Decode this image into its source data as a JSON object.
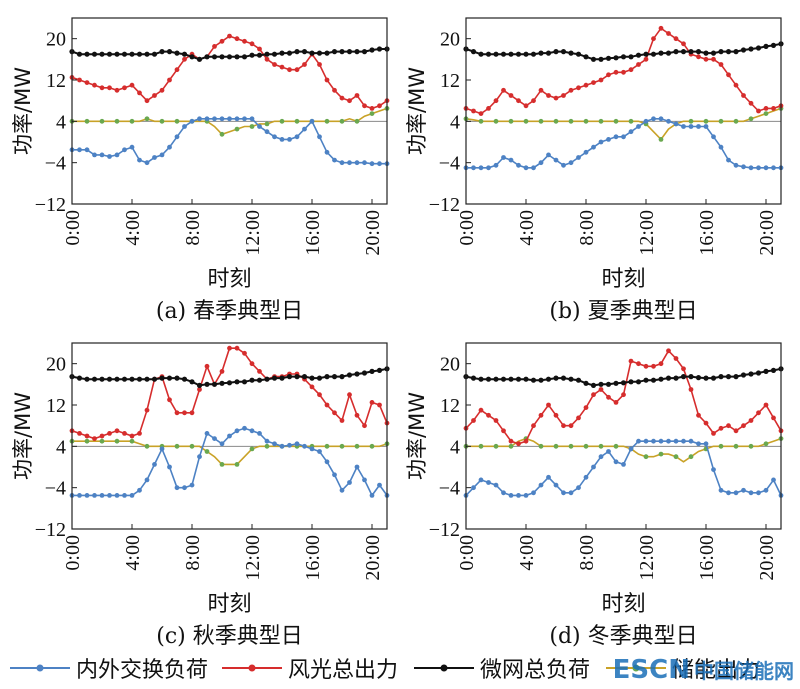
{
  "colors": {
    "exchange": "#4d82c4",
    "renewable": "#d62d2d",
    "load": "#111111",
    "storage": "#c9a227",
    "storage_marker": "#6aa84f"
  },
  "chart_data": [
    {
      "type": "line",
      "caption": "(a) 春季典型日",
      "xlabel": "时刻",
      "ylabel": "功率/MW",
      "x_ticks": [
        "0:00",
        "4:00",
        "8:00",
        "12:00",
        "16:00",
        "20:00"
      ],
      "y_ticks": [
        -12,
        -4,
        4,
        12,
        20
      ],
      "ylim": [
        -12,
        24
      ],
      "x_range_hours": [
        0,
        21
      ],
      "x_hours": [
        0,
        0.5,
        1,
        1.5,
        2,
        2.5,
        3,
        3.5,
        4,
        4.5,
        5,
        5.5,
        6,
        6.5,
        7,
        7.5,
        8,
        8.5,
        9,
        9.5,
        10,
        10.5,
        11,
        11.5,
        12,
        12.5,
        13,
        13.5,
        14,
        14.5,
        15,
        15.5,
        16,
        16.5,
        17,
        17.5,
        18,
        18.5,
        19,
        19.5,
        20,
        20.5,
        21
      ],
      "series": [
        {
          "name": "内外交换负荷",
          "key": "exchange",
          "values": [
            -1.5,
            -1.5,
            -1.5,
            -2.5,
            -2.5,
            -2.8,
            -2.5,
            -1.5,
            -1,
            -3.5,
            -4,
            -3,
            -2.5,
            -1,
            1,
            3,
            4,
            4.5,
            4.5,
            4.5,
            4.5,
            4.5,
            4.5,
            4.5,
            4.5,
            3,
            2,
            1,
            0.5,
            0.5,
            1,
            2.5,
            4,
            1,
            -2,
            -3.5,
            -4,
            -4,
            -4,
            -4,
            -4.2,
            -4.2,
            -4.2
          ]
        },
        {
          "name": "风光总出力",
          "key": "renewable",
          "values": [
            12.5,
            12,
            11.5,
            11,
            10.5,
            10.5,
            10,
            10.5,
            11,
            9.5,
            8,
            9,
            10,
            12,
            14,
            16,
            17,
            16,
            16.5,
            18.5,
            19.5,
            20.5,
            20,
            19.5,
            19,
            18,
            16,
            15,
            14.5,
            14,
            14,
            15,
            17,
            15,
            12,
            10,
            8.5,
            8,
            9,
            7,
            6.5,
            7,
            8
          ]
        },
        {
          "name": "微网总负荷",
          "key": "load",
          "values": [
            17.5,
            17,
            17,
            17,
            17,
            17,
            17,
            17,
            17,
            17,
            17,
            17,
            17.5,
            17.5,
            17.2,
            17,
            16.5,
            16,
            16.5,
            16.5,
            16.5,
            16.5,
            16.5,
            16.5,
            16.8,
            16.8,
            17,
            17,
            17.2,
            17.2,
            17.5,
            17.5,
            17.2,
            17.2,
            17.2,
            17.5,
            17.5,
            17.5,
            17.5,
            17.5,
            17.8,
            18,
            18
          ]
        },
        {
          "name": "储能出力",
          "key": "storage",
          "values": [
            4,
            4,
            4,
            4,
            4,
            4,
            4,
            4,
            4,
            4,
            4.5,
            4,
            4,
            4,
            4,
            4,
            4,
            4,
            4,
            3,
            1.5,
            2,
            2.5,
            3,
            3,
            3.5,
            3.5,
            4,
            4,
            4,
            4,
            4,
            4,
            4,
            4,
            4,
            4,
            4.5,
            4,
            5,
            5.5,
            6,
            6.5
          ]
        }
      ]
    },
    {
      "type": "line",
      "caption": "(b) 夏季典型日",
      "xlabel": "时刻",
      "ylabel": "功率/MW",
      "x_ticks": [
        "0:00",
        "4:00",
        "8:00",
        "12:00",
        "16:00",
        "20:00"
      ],
      "y_ticks": [
        -12,
        -4,
        4,
        12,
        20
      ],
      "ylim": [
        -12,
        24
      ],
      "x_range_hours": [
        0,
        21
      ],
      "x_hours": [
        0,
        0.5,
        1,
        1.5,
        2,
        2.5,
        3,
        3.5,
        4,
        4.5,
        5,
        5.5,
        6,
        6.5,
        7,
        7.5,
        8,
        8.5,
        9,
        9.5,
        10,
        10.5,
        11,
        11.5,
        12,
        12.5,
        13,
        13.5,
        14,
        14.5,
        15,
        15.5,
        16,
        16.5,
        17,
        17.5,
        18,
        18.5,
        19,
        19.5,
        20,
        20.5,
        21
      ],
      "series": [
        {
          "name": "内外交换负荷",
          "key": "exchange",
          "values": [
            -5,
            -5,
            -5,
            -5,
            -4.5,
            -3,
            -3.5,
            -4.5,
            -5,
            -5,
            -4,
            -2.5,
            -3.5,
            -4.5,
            -4,
            -3,
            -2,
            -1,
            0,
            0.5,
            1,
            1,
            2,
            3,
            4,
            4.5,
            4.5,
            4,
            3.5,
            3,
            3,
            3,
            3,
            1,
            -1,
            -3.5,
            -4.5,
            -4.8,
            -5,
            -5,
            -5,
            -5,
            -5
          ]
        },
        {
          "name": "风光总出力",
          "key": "renewable",
          "values": [
            6.5,
            6,
            5.5,
            6.5,
            8,
            10,
            9,
            8,
            7,
            8,
            10,
            9,
            8.5,
            9,
            10,
            10.5,
            11,
            11.5,
            12,
            13,
            13.5,
            13.5,
            14,
            15,
            16,
            20,
            22,
            21,
            20,
            19,
            17,
            16.5,
            16,
            16,
            15,
            13,
            11,
            9,
            7.5,
            6,
            6.5,
            6.5,
            7
          ]
        },
        {
          "name": "微网总负荷",
          "key": "load",
          "values": [
            18,
            17.5,
            17,
            17,
            17,
            17,
            17,
            17,
            17,
            17,
            17.2,
            17.2,
            17.5,
            17.5,
            17.2,
            17,
            16.5,
            16,
            16,
            16.2,
            16.3,
            16.5,
            16.5,
            16.8,
            17,
            17,
            17.2,
            17.2,
            17.5,
            17.5,
            17.5,
            17.5,
            17.2,
            17.2,
            17.5,
            17.5,
            17.5,
            17.8,
            18,
            18.2,
            18.5,
            18.7,
            19
          ]
        },
        {
          "name": "储能出力",
          "key": "storage",
          "values": [
            4.5,
            4.3,
            4,
            4,
            4,
            4,
            4,
            4,
            4,
            4,
            4,
            4,
            4,
            4,
            4,
            4,
            4,
            4,
            4,
            4,
            4,
            4,
            4,
            4,
            3.5,
            2,
            0.5,
            2.5,
            3.5,
            4,
            4,
            4,
            4,
            4,
            4,
            4,
            4,
            4,
            4.5,
            5,
            5.5,
            6,
            6.5
          ]
        }
      ]
    },
    {
      "type": "line",
      "caption": "(c) 秋季典型日",
      "xlabel": "时刻",
      "ylabel": "功率/MW",
      "x_ticks": [
        "0:00",
        "4:00",
        "8:00",
        "12:00",
        "16:00",
        "20:00"
      ],
      "y_ticks": [
        -12,
        -4,
        4,
        12,
        20
      ],
      "ylim": [
        -12,
        24
      ],
      "x_range_hours": [
        0,
        21
      ],
      "x_hours": [
        0,
        0.5,
        1,
        1.5,
        2,
        2.5,
        3,
        3.5,
        4,
        4.5,
        5,
        5.5,
        6,
        6.5,
        7,
        7.5,
        8,
        8.5,
        9,
        9.5,
        10,
        10.5,
        11,
        11.5,
        12,
        12.5,
        13,
        13.5,
        14,
        14.5,
        15,
        15.5,
        16,
        16.5,
        17,
        17.5,
        18,
        18.5,
        19,
        19.5,
        20,
        20.5,
        21
      ],
      "series": [
        {
          "name": "内外交换负荷",
          "key": "exchange",
          "values": [
            -5.5,
            -5.5,
            -5.5,
            -5.5,
            -5.5,
            -5.5,
            -5.5,
            -5.5,
            -5.5,
            -4.5,
            -2.5,
            0.5,
            3.5,
            0,
            -4,
            -4,
            -3.5,
            2,
            6.5,
            5.5,
            4.5,
            6,
            7,
            7.5,
            7,
            6.5,
            5,
            4.5,
            4,
            4.2,
            4.5,
            4,
            3.5,
            3,
            1,
            -1.5,
            -4.5,
            -3,
            0,
            -2.5,
            -5.5,
            -3.5,
            -5.5
          ]
        },
        {
          "name": "风光总出力",
          "key": "renewable",
          "values": [
            7,
            6.5,
            6,
            5.5,
            6,
            6.5,
            7,
            6.5,
            6,
            6.5,
            11,
            17,
            17.5,
            13,
            10.5,
            10.5,
            10.5,
            15,
            19.5,
            16,
            18.5,
            23,
            23,
            22,
            20,
            18.5,
            17,
            17.5,
            17.5,
            18,
            18,
            17,
            15.5,
            14,
            12,
            10.5,
            9,
            14,
            10,
            8,
            12.5,
            12,
            8.5
          ]
        },
        {
          "name": "微网总负荷",
          "key": "load",
          "values": [
            17.5,
            17.2,
            17,
            17,
            17,
            17,
            17,
            17,
            17,
            17,
            17,
            17,
            17.2,
            17.2,
            17.2,
            17,
            16.5,
            15.8,
            16,
            16,
            16.2,
            16.3,
            16.5,
            16.5,
            16.8,
            16.8,
            17,
            17.2,
            17.2,
            17.5,
            17.5,
            17.5,
            17.2,
            17.2,
            17.5,
            17.5,
            17.5,
            17.8,
            18,
            18.2,
            18.5,
            18.7,
            19
          ]
        },
        {
          "name": "储能出力",
          "key": "storage",
          "values": [
            5,
            5,
            5,
            5,
            5,
            5,
            5,
            5,
            5,
            4.5,
            4,
            4,
            4,
            4,
            4,
            4,
            4,
            4,
            3,
            2,
            0.5,
            0.5,
            0.5,
            2,
            3.5,
            4,
            4,
            4,
            4,
            4,
            4,
            4,
            4,
            4,
            4,
            4,
            4,
            4,
            4,
            4,
            4,
            4,
            4.5
          ]
        }
      ]
    },
    {
      "type": "line",
      "caption": "(d) 冬季典型日",
      "xlabel": "时刻",
      "ylabel": "功率/MW",
      "x_ticks": [
        "0:00",
        "4:00",
        "8:00",
        "12:00",
        "16:00",
        "20:00"
      ],
      "y_ticks": [
        -12,
        -4,
        4,
        12,
        20
      ],
      "ylim": [
        -12,
        24
      ],
      "x_range_hours": [
        0,
        21
      ],
      "x_hours": [
        0,
        0.5,
        1,
        1.5,
        2,
        2.5,
        3,
        3.5,
        4,
        4.5,
        5,
        5.5,
        6,
        6.5,
        7,
        7.5,
        8,
        8.5,
        9,
        9.5,
        10,
        10.5,
        11,
        11.5,
        12,
        12.5,
        13,
        13.5,
        14,
        14.5,
        15,
        15.5,
        16,
        16.5,
        17,
        17.5,
        18,
        18.5,
        19,
        19.5,
        20,
        20.5,
        21
      ],
      "series": [
        {
          "name": "内外交换负荷",
          "key": "exchange",
          "values": [
            -5.5,
            -4,
            -2.5,
            -3,
            -3.5,
            -5,
            -5.5,
            -5.5,
            -5.5,
            -5,
            -3.5,
            -2,
            -3.5,
            -5,
            -5,
            -4,
            -2,
            0,
            2,
            3,
            1,
            0.5,
            3.5,
            5,
            5,
            5,
            5,
            5,
            5,
            5,
            5,
            4.5,
            4.5,
            -0.5,
            -4.5,
            -5,
            -5,
            -4.5,
            -5,
            -5,
            -4.5,
            -2.5,
            -5.5
          ]
        },
        {
          "name": "风光总出力",
          "key": "renewable",
          "values": [
            7.5,
            9,
            11,
            10,
            9,
            7,
            5,
            4.5,
            5,
            8,
            10,
            12,
            10,
            8,
            8,
            9.5,
            11.5,
            14,
            15,
            13.5,
            12.5,
            14,
            20.5,
            20,
            19.5,
            19.5,
            20,
            22.5,
            21,
            19,
            15,
            10,
            8.5,
            6.5,
            7.5,
            8,
            7,
            8,
            9,
            10.5,
            12,
            9.5,
            7
          ]
        },
        {
          "name": "微网总负荷",
          "key": "load",
          "values": [
            17.5,
            17.2,
            17,
            17,
            17,
            17,
            17,
            17,
            17,
            16.8,
            16.8,
            17,
            17.2,
            17.2,
            17,
            16.8,
            16.2,
            15.8,
            16,
            16,
            16.2,
            16.3,
            16.5,
            16.5,
            16.8,
            16.8,
            17,
            17.2,
            17.2,
            17.5,
            17.5,
            17.3,
            17.2,
            17.2,
            17.5,
            17.5,
            17.5,
            17.8,
            18,
            18.2,
            18.5,
            18.7,
            19
          ]
        },
        {
          "name": "储能出力",
          "key": "storage",
          "values": [
            4,
            4,
            4,
            4,
            4,
            4,
            4,
            5,
            5.5,
            5,
            4,
            4,
            4,
            4,
            4,
            4,
            4,
            4,
            4,
            4,
            4,
            4,
            3.5,
            2.5,
            2,
            2,
            2.5,
            2.5,
            2,
            1,
            2,
            3,
            3.5,
            4,
            4,
            4,
            4,
            4,
            4,
            4,
            4.5,
            5,
            5.5
          ]
        }
      ]
    }
  ],
  "legend": [
    {
      "label": "内外交换负荷",
      "key": "exchange"
    },
    {
      "label": "风光总出力",
      "key": "renewable"
    },
    {
      "label": "微网总负荷",
      "key": "load"
    },
    {
      "label": "储能出力",
      "key": "storage"
    }
  ],
  "watermark": {
    "brand": "ESCN",
    "site": "中国储能网"
  }
}
